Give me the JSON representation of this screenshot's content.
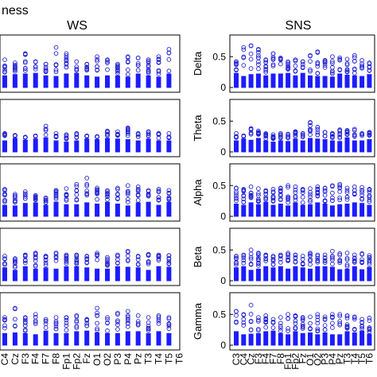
{
  "figure": {
    "corner_label": "ness",
    "panel_titles": [
      "WS",
      "SNS"
    ]
  },
  "colors": {
    "marker": "#2323d2",
    "box": "#1c1cff",
    "axis": "#000000"
  },
  "chart_data": [
    {
      "type": "box",
      "title": "WS",
      "column": "left",
      "bands": [
        "Delta",
        "Theta",
        "Alpha",
        "Beta",
        "Gamma"
      ],
      "categories": [
        "C4",
        "Cz",
        "F3",
        "F4",
        "F7",
        "F8",
        "Fp1",
        "Fp2",
        "Fz",
        "O1",
        "O2",
        "P3",
        "P4",
        "Pz",
        "T3",
        "T4",
        "T5",
        "T6"
      ],
      "ylim": [
        0,
        0.8
      ],
      "grid": false,
      "outlier_maxima": {
        "Delta": [
          0.45,
          0.4,
          0.55,
          0.42,
          0.38,
          0.65,
          0.55,
          0.42,
          0.38,
          0.5,
          0.45,
          0.38,
          0.5,
          0.48,
          0.45,
          0.5,
          0.62,
          0.42
        ],
        "Theta": [
          0.3,
          0.27,
          0.24,
          0.26,
          0.42,
          0.3,
          0.28,
          0.3,
          0.26,
          0.25,
          0.34,
          0.33,
          0.39,
          0.3,
          0.33,
          0.3,
          0.3,
          0.28
        ],
        "Alpha": [
          0.44,
          0.36,
          0.4,
          0.34,
          0.3,
          0.42,
          0.45,
          0.52,
          0.62,
          0.46,
          0.42,
          0.46,
          0.5,
          0.48,
          0.42,
          0.44,
          0.42,
          0.48
        ],
        "Beta": [
          0.4,
          0.36,
          0.42,
          0.45,
          0.4,
          0.45,
          0.42,
          0.42,
          0.4,
          0.45,
          0.38,
          0.42,
          0.48,
          0.4,
          0.43,
          0.42,
          0.41,
          0.42
        ],
        "Gamma": [
          0.45,
          0.6,
          0.45,
          0.5,
          0.42,
          0.45,
          0.45,
          0.48,
          0.42,
          0.6,
          0.45,
          0.52,
          0.55,
          0.48,
          0.45,
          0.48,
          0.45,
          0.4
        ]
      }
    },
    {
      "type": "box",
      "title": "SNS",
      "column": "right",
      "bands": [
        "Delta",
        "Theta",
        "Alpha",
        "Beta",
        "Gamma"
      ],
      "categories": [
        "C3",
        "C4",
        "Cz",
        "F3",
        "F4",
        "F7",
        "F8",
        "Fp1",
        "Fp2",
        "Fz",
        "O1",
        "O2",
        "P3",
        "P4",
        "Pz",
        "T3",
        "T4",
        "T5",
        "T6"
      ],
      "ylim": [
        0,
        0.8
      ],
      "yticks": [
        0,
        0.5
      ],
      "ylabels": [
        "Delta",
        "Theta",
        "Alpha",
        "Beta",
        "Gamma"
      ],
      "grid": false,
      "outlier_maxima": {
        "Delta": [
          0.42,
          0.65,
          0.68,
          0.62,
          0.45,
          0.55,
          0.48,
          0.42,
          0.45,
          0.42,
          0.52,
          0.58,
          0.44,
          0.5,
          0.48,
          0.46,
          0.52,
          0.44,
          0.4
        ],
        "Theta": [
          0.3,
          0.26,
          0.38,
          0.34,
          0.3,
          0.28,
          0.3,
          0.29,
          0.33,
          0.3,
          0.48,
          0.4,
          0.32,
          0.3,
          0.36,
          0.35,
          0.37,
          0.3,
          0.32
        ],
        "Alpha": [
          0.46,
          0.44,
          0.48,
          0.45,
          0.42,
          0.44,
          0.46,
          0.5,
          0.48,
          0.44,
          0.45,
          0.48,
          0.46,
          0.5,
          0.52,
          0.46,
          0.48,
          0.47,
          0.44
        ],
        "Beta": [
          0.4,
          0.42,
          0.5,
          0.45,
          0.42,
          0.4,
          0.42,
          0.45,
          0.42,
          0.4,
          0.45,
          0.42,
          0.42,
          0.48,
          0.44,
          0.45,
          0.42,
          0.44,
          0.41
        ],
        "Gamma": [
          0.55,
          0.5,
          0.65,
          0.45,
          0.48,
          0.42,
          0.45,
          0.5,
          0.48,
          0.45,
          0.46,
          0.5,
          0.46,
          0.5,
          0.5,
          0.48,
          0.46,
          0.42,
          0.44
        ]
      }
    }
  ]
}
